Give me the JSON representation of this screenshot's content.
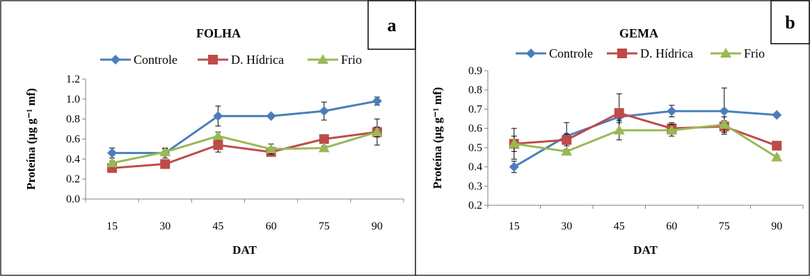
{
  "chart_data": [
    {
      "type": "line",
      "panel_label": "a",
      "title": "FOLHA",
      "xlabel": "DAT",
      "ylabel": "Proteína (µg g⁻¹ mf)",
      "categories": [
        "15",
        "30",
        "45",
        "60",
        "75",
        "90"
      ],
      "ylim": [
        0,
        1.2
      ],
      "yticks": [
        0,
        0.2,
        0.4,
        0.6,
        0.8,
        1.0,
        1.2
      ],
      "ytick_labels": [
        "0.0",
        "0.2",
        "0.4",
        "0.6",
        "0.8",
        "1.0",
        "1.2"
      ],
      "grid": false,
      "legend_position": "top",
      "series": [
        {
          "name": "Controle",
          "color": "#4a7ebb",
          "marker": "diamond",
          "values": [
            0.46,
            0.46,
            0.83,
            0.83,
            0.88,
            0.98
          ],
          "errors": [
            0.05,
            0.05,
            0.1,
            0.02,
            0.09,
            0.04
          ]
        },
        {
          "name": "D. Hídrica",
          "color": "#be4b48",
          "marker": "square",
          "values": [
            0.31,
            0.35,
            0.54,
            0.47,
            0.6,
            0.67
          ],
          "errors": [
            0.03,
            0.02,
            0.07,
            0.04,
            0.03,
            0.13
          ]
        },
        {
          "name": "Frio",
          "color": "#98b954",
          "marker": "triangle",
          "values": [
            0.36,
            0.47,
            0.63,
            0.5,
            0.51,
            0.67
          ],
          "errors": [
            0.02,
            0.03,
            0.04,
            0.05,
            0.02,
            0.05
          ]
        }
      ]
    },
    {
      "type": "line",
      "panel_label": "b",
      "title": "GEMA",
      "xlabel": "DAT",
      "ylabel": "Proteína (µg g⁻¹ mf)",
      "categories": [
        "15",
        "30",
        "45",
        "60",
        "75",
        "90"
      ],
      "ylim": [
        0.2,
        0.9
      ],
      "yticks": [
        0.2,
        0.3,
        0.4,
        0.5,
        0.6,
        0.7,
        0.8,
        0.9
      ],
      "ytick_labels": [
        "0.2",
        "0.3",
        "0.4",
        "0.5",
        "0.6",
        "0.7",
        "0.8",
        "0.9"
      ],
      "grid": false,
      "legend_position": "top",
      "series": [
        {
          "name": "Controle",
          "color": "#4a7ebb",
          "marker": "diamond",
          "values": [
            0.4,
            0.56,
            0.66,
            0.69,
            0.69,
            0.67
          ],
          "errors": [
            0.03,
            0.07,
            0.03,
            0.03,
            0.12,
            0.01
          ]
        },
        {
          "name": "D. Hídrica",
          "color": "#be4b48",
          "marker": "square",
          "values": [
            0.52,
            0.54,
            0.68,
            0.6,
            0.61,
            0.51
          ],
          "errors": [
            0.08,
            0.03,
            0.1,
            0.03,
            0.03,
            0.01
          ]
        },
        {
          "name": "Frio",
          "color": "#98b954",
          "marker": "triangle",
          "values": [
            0.52,
            0.48,
            0.59,
            0.59,
            0.62,
            0.45
          ],
          "errors": [
            0.04,
            0.01,
            0.05,
            0.03,
            0.04,
            0.01
          ]
        }
      ]
    }
  ]
}
